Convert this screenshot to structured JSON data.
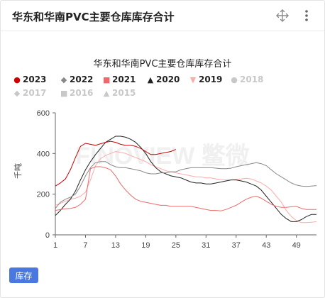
{
  "card": {
    "title": "华东和华南PVC主要仓库库存合计"
  },
  "icons": {
    "move": "move-arrows-icon",
    "more": "more-vertical-icon"
  },
  "tab": {
    "label": "库存"
  },
  "watermark": "FINOVIEW 鳖微",
  "colors": {
    "2023": "#cc0000",
    "2022": "#888888",
    "2021": "#ee6a6a",
    "2020": "#222222",
    "2019": "#ffaaaa",
    "2018": "#cccccc",
    "inactive": "#c8c8c8",
    "accent": "#4a78e0"
  },
  "chart_data": {
    "type": "line",
    "title": "华东和华南PVC主要仓库库存合计",
    "ylabel": "千吨",
    "xlabel": "",
    "ylim": [
      0,
      600
    ],
    "yticks": [
      0,
      200,
      400,
      600
    ],
    "xlim": [
      1,
      53
    ],
    "xticks": [
      1,
      7,
      13,
      19,
      25,
      31,
      37,
      43,
      49
    ],
    "grid": false,
    "legend_position": "top-left",
    "legend": [
      {
        "name": "2023",
        "marker": "circle",
        "active": true
      },
      {
        "name": "2022",
        "marker": "diamond",
        "active": true
      },
      {
        "name": "2021",
        "marker": "square",
        "active": true
      },
      {
        "name": "2020",
        "marker": "triangle",
        "active": true
      },
      {
        "name": "2019",
        "marker": "triangle-down",
        "active": true
      },
      {
        "name": "2018",
        "marker": "circle",
        "active": false
      },
      {
        "name": "2017",
        "marker": "diamond",
        "active": false
      },
      {
        "name": "2016",
        "marker": "square",
        "active": false
      },
      {
        "name": "2015",
        "marker": "triangle",
        "active": false
      }
    ],
    "series": [
      {
        "name": "2023",
        "x": [
          1,
          2,
          3,
          4,
          5,
          6,
          7,
          8,
          9,
          10,
          11,
          12,
          13,
          14,
          15,
          16,
          17,
          18,
          19,
          20,
          21,
          22,
          23,
          24,
          25
        ],
        "values": [
          240,
          255,
          275,
          320,
          380,
          435,
          450,
          445,
          440,
          448,
          455,
          460,
          455,
          445,
          440,
          440,
          435,
          425,
          410,
          395,
          395,
          400,
          405,
          410,
          420
        ]
      },
      {
        "name": "2022",
        "x": [
          1,
          2,
          3,
          4,
          5,
          6,
          7,
          8,
          9,
          10,
          11,
          12,
          13,
          14,
          15,
          16,
          17,
          18,
          19,
          20,
          21,
          22,
          23,
          24,
          25,
          26,
          27,
          28,
          29,
          30,
          31,
          32,
          33,
          34,
          35,
          36,
          37,
          38,
          39,
          40,
          41,
          42,
          43,
          44,
          45,
          46,
          47,
          48,
          49,
          50,
          51,
          52,
          53
        ],
        "values": [
          130,
          160,
          175,
          185,
          200,
          240,
          290,
          330,
          355,
          360,
          360,
          345,
          335,
          330,
          330,
          325,
          320,
          315,
          305,
          300,
          300,
          305,
          305,
          310,
          310,
          320,
          325,
          330,
          330,
          330,
          330,
          330,
          328,
          325,
          325,
          328,
          335,
          340,
          345,
          350,
          355,
          350,
          340,
          320,
          300,
          285,
          270,
          255,
          245,
          240,
          238,
          240,
          242
        ]
      },
      {
        "name": "2021",
        "x": [
          1,
          2,
          3,
          4,
          5,
          6,
          7,
          8,
          9,
          10,
          11,
          12,
          13,
          14,
          15,
          16,
          17,
          18,
          19,
          20,
          21,
          22,
          23,
          24,
          25,
          26,
          27,
          28,
          29,
          30,
          31,
          32,
          33,
          34,
          35,
          36,
          37,
          38,
          39,
          40,
          41,
          42,
          43,
          44,
          45,
          46,
          47,
          48,
          49,
          50,
          51,
          52,
          53
        ],
        "values": [
          120,
          125,
          128,
          130,
          135,
          150,
          175,
          325,
          335,
          335,
          330,
          320,
          290,
          250,
          220,
          195,
          175,
          165,
          160,
          155,
          150,
          145,
          145,
          140,
          140,
          140,
          140,
          140,
          135,
          130,
          125,
          120,
          120,
          118,
          125,
          135,
          145,
          160,
          175,
          185,
          190,
          180,
          165,
          150,
          140,
          135,
          135,
          138,
          140,
          130,
          125,
          125,
          125
        ]
      },
      {
        "name": "2020",
        "x": [
          1,
          2,
          3,
          4,
          5,
          6,
          7,
          8,
          9,
          10,
          11,
          12,
          13,
          14,
          15,
          16,
          17,
          18,
          19,
          20,
          21,
          22,
          23,
          24,
          25,
          26,
          27,
          28,
          29,
          30,
          31,
          32,
          33,
          34,
          35,
          36,
          37,
          38,
          39,
          40,
          41,
          42,
          43,
          44,
          45,
          46,
          47,
          48,
          49,
          50,
          51,
          52,
          53
        ],
        "values": [
          95,
          120,
          150,
          175,
          215,
          270,
          320,
          360,
          395,
          425,
          455,
          470,
          485,
          485,
          480,
          470,
          455,
          430,
          400,
          360,
          330,
          310,
          300,
          290,
          285,
          280,
          270,
          260,
          255,
          255,
          250,
          250,
          255,
          260,
          265,
          270,
          270,
          265,
          260,
          250,
          240,
          220,
          190,
          160,
          130,
          100,
          80,
          65,
          65,
          75,
          90,
          100,
          100
        ]
      },
      {
        "name": "2019",
        "x": [
          1,
          2,
          3,
          4,
          5,
          6,
          7,
          8,
          9,
          10,
          11,
          12,
          13,
          14,
          15,
          16,
          17,
          18,
          19,
          20,
          21,
          22,
          23,
          24,
          25,
          26,
          27,
          28,
          29,
          30,
          31,
          32,
          33,
          34,
          35,
          36,
          37,
          38,
          39,
          40,
          41,
          42,
          43,
          44,
          45,
          46,
          47,
          48,
          49,
          50,
          51,
          52,
          53
        ],
        "values": [
          145,
          155,
          165,
          175,
          180,
          190,
          210,
          270,
          340,
          375,
          390,
          400,
          410,
          405,
          400,
          390,
          380,
          370,
          360,
          345,
          335,
          325,
          315,
          310,
          305,
          300,
          295,
          290,
          285,
          285,
          280,
          280,
          275,
          272,
          270,
          270,
          272,
          275,
          278,
          275,
          265,
          255,
          240,
          220,
          190,
          160,
          120,
          90,
          70,
          60,
          60,
          62,
          65
        ]
      }
    ]
  }
}
